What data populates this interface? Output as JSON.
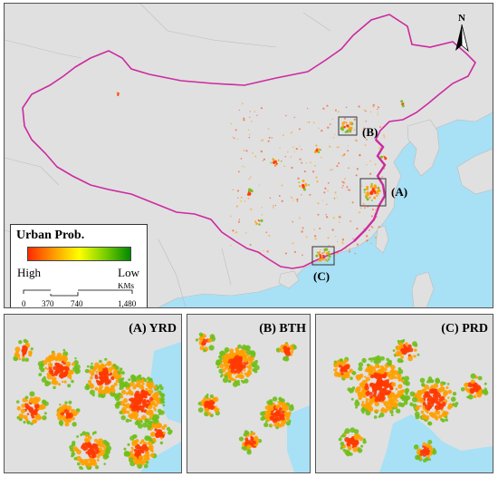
{
  "main_map": {
    "north_label": "N",
    "inset_markers": [
      "(A)",
      "(B)",
      "(C)"
    ]
  },
  "legend": {
    "title": "Urban Prob.",
    "high_label": "High",
    "low_label": "Low",
    "ramp_colors": [
      "#ff2a00",
      "#ff9a00",
      "#ffff00",
      "#7ccf00",
      "#008a00"
    ],
    "scale_ticks": [
      "0",
      "370",
      "740",
      "1,480"
    ],
    "scale_unit": "KMs"
  },
  "insets": [
    {
      "title": "(A) YRD"
    },
    {
      "title": "(B) BTH"
    },
    {
      "title": "(C) PRD"
    }
  ],
  "colors": {
    "land": "#e0e0e0",
    "sea": "#a8e0f5",
    "boundary": "#cc2aa0",
    "urban_high": "#ff3a00",
    "urban_mid": "#ffa000",
    "urban_low": "#6fbf1a"
  }
}
